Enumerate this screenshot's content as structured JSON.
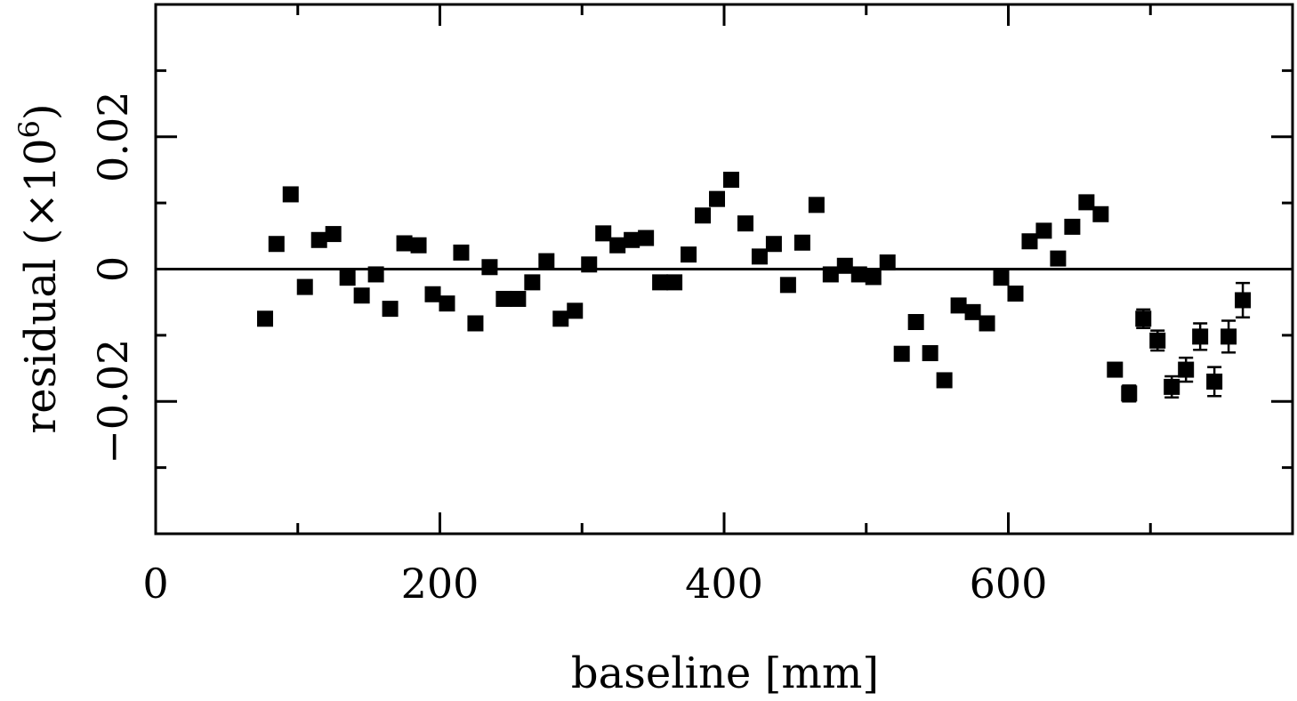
{
  "chart_data": {
    "type": "scatter",
    "title": "",
    "xlabel": "baseline [mm]",
    "ylabel": "residual (×10",
    "ylabel_exponent": "6",
    "ylabel_close": ")",
    "xlim": [
      0,
      800
    ],
    "ylim": [
      -0.04,
      0.04
    ],
    "x_ticks": [
      0,
      200,
      400,
      600
    ],
    "x_tick_labels": [
      "0",
      "200",
      "400",
      "600"
    ],
    "x_minor_ticks": [
      100,
      300,
      500,
      700
    ],
    "y_ticks": [
      -0.02,
      0,
      0.02
    ],
    "y_tick_labels": [
      "−0.02",
      "0",
      "0.02"
    ],
    "y_minor_ticks": [
      -0.03,
      -0.01,
      0.01,
      0.03
    ],
    "zero_line": true,
    "grid": false,
    "legend": "none",
    "colors": {
      "marker": "#000000",
      "axis": "#000000"
    },
    "series": [
      {
        "points": [
          {
            "x": 77,
            "y": -0.0075
          },
          {
            "x": 85,
            "y": 0.0038
          },
          {
            "x": 95,
            "y": 0.0113
          },
          {
            "x": 105,
            "y": -0.0027
          },
          {
            "x": 115,
            "y": 0.0044
          },
          {
            "x": 125,
            "y": 0.0053
          },
          {
            "x": 135,
            "y": -0.0013
          },
          {
            "x": 145,
            "y": -0.004
          },
          {
            "x": 155,
            "y": -0.0008
          },
          {
            "x": 165,
            "y": -0.006
          },
          {
            "x": 175,
            "y": 0.0039
          },
          {
            "x": 185,
            "y": 0.0036
          },
          {
            "x": 195,
            "y": -0.0038
          },
          {
            "x": 205,
            "y": -0.0052
          },
          {
            "x": 215,
            "y": 0.0025
          },
          {
            "x": 225,
            "y": -0.0082
          },
          {
            "x": 235,
            "y": 0.0003
          },
          {
            "x": 245,
            "y": -0.0045
          },
          {
            "x": 255,
            "y": -0.0045
          },
          {
            "x": 265,
            "y": -0.002
          },
          {
            "x": 275,
            "y": 0.0012
          },
          {
            "x": 285,
            "y": -0.0075
          },
          {
            "x": 295,
            "y": -0.0063
          },
          {
            "x": 305,
            "y": 0.0007
          },
          {
            "x": 315,
            "y": 0.0054
          },
          {
            "x": 325,
            "y": 0.0036
          },
          {
            "x": 335,
            "y": 0.0044
          },
          {
            "x": 345,
            "y": 0.0047
          },
          {
            "x": 355,
            "y": -0.002
          },
          {
            "x": 365,
            "y": -0.002
          },
          {
            "x": 375,
            "y": 0.0022
          },
          {
            "x": 385,
            "y": 0.0081
          },
          {
            "x": 395,
            "y": 0.0106
          },
          {
            "x": 405,
            "y": 0.0135
          },
          {
            "x": 415,
            "y": 0.0069
          },
          {
            "x": 425,
            "y": 0.0019
          },
          {
            "x": 435,
            "y": 0.0038
          },
          {
            "x": 445,
            "y": -0.0024
          },
          {
            "x": 455,
            "y": 0.004
          },
          {
            "x": 465,
            "y": 0.0097
          },
          {
            "x": 475,
            "y": -0.0008
          },
          {
            "x": 485,
            "y": 0.0005
          },
          {
            "x": 495,
            "y": -0.0008
          },
          {
            "x": 505,
            "y": -0.0012
          },
          {
            "x": 515,
            "y": 0.001
          },
          {
            "x": 525,
            "y": -0.0128
          },
          {
            "x": 535,
            "y": -0.008
          },
          {
            "x": 545,
            "y": -0.0127
          },
          {
            "x": 555,
            "y": -0.0168
          },
          {
            "x": 565,
            "y": -0.0055
          },
          {
            "x": 575,
            "y": -0.0065
          },
          {
            "x": 585,
            "y": -0.0082
          },
          {
            "x": 595,
            "y": -0.0013
          },
          {
            "x": 605,
            "y": -0.0037
          },
          {
            "x": 615,
            "y": 0.0042
          },
          {
            "x": 625,
            "y": 0.0058
          },
          {
            "x": 635,
            "y": 0.0016
          },
          {
            "x": 645,
            "y": 0.0064
          },
          {
            "x": 655,
            "y": 0.0101
          },
          {
            "x": 665,
            "y": 0.0083
          },
          {
            "x": 675,
            "y": -0.0152,
            "err": 0.001
          },
          {
            "x": 685,
            "y": -0.0188,
            "err": 0.0012
          },
          {
            "x": 695,
            "y": -0.0075,
            "err": 0.0014
          },
          {
            "x": 705,
            "y": -0.0108,
            "err": 0.0015
          },
          {
            "x": 715,
            "y": -0.0178,
            "err": 0.0016
          },
          {
            "x": 725,
            "y": -0.0152,
            "err": 0.0018
          },
          {
            "x": 735,
            "y": -0.0102,
            "err": 0.002
          },
          {
            "x": 745,
            "y": -0.017,
            "err": 0.0022
          },
          {
            "x": 755,
            "y": -0.0102,
            "err": 0.0024
          },
          {
            "x": 765,
            "y": -0.0047,
            "err": 0.0026
          }
        ]
      }
    ]
  }
}
